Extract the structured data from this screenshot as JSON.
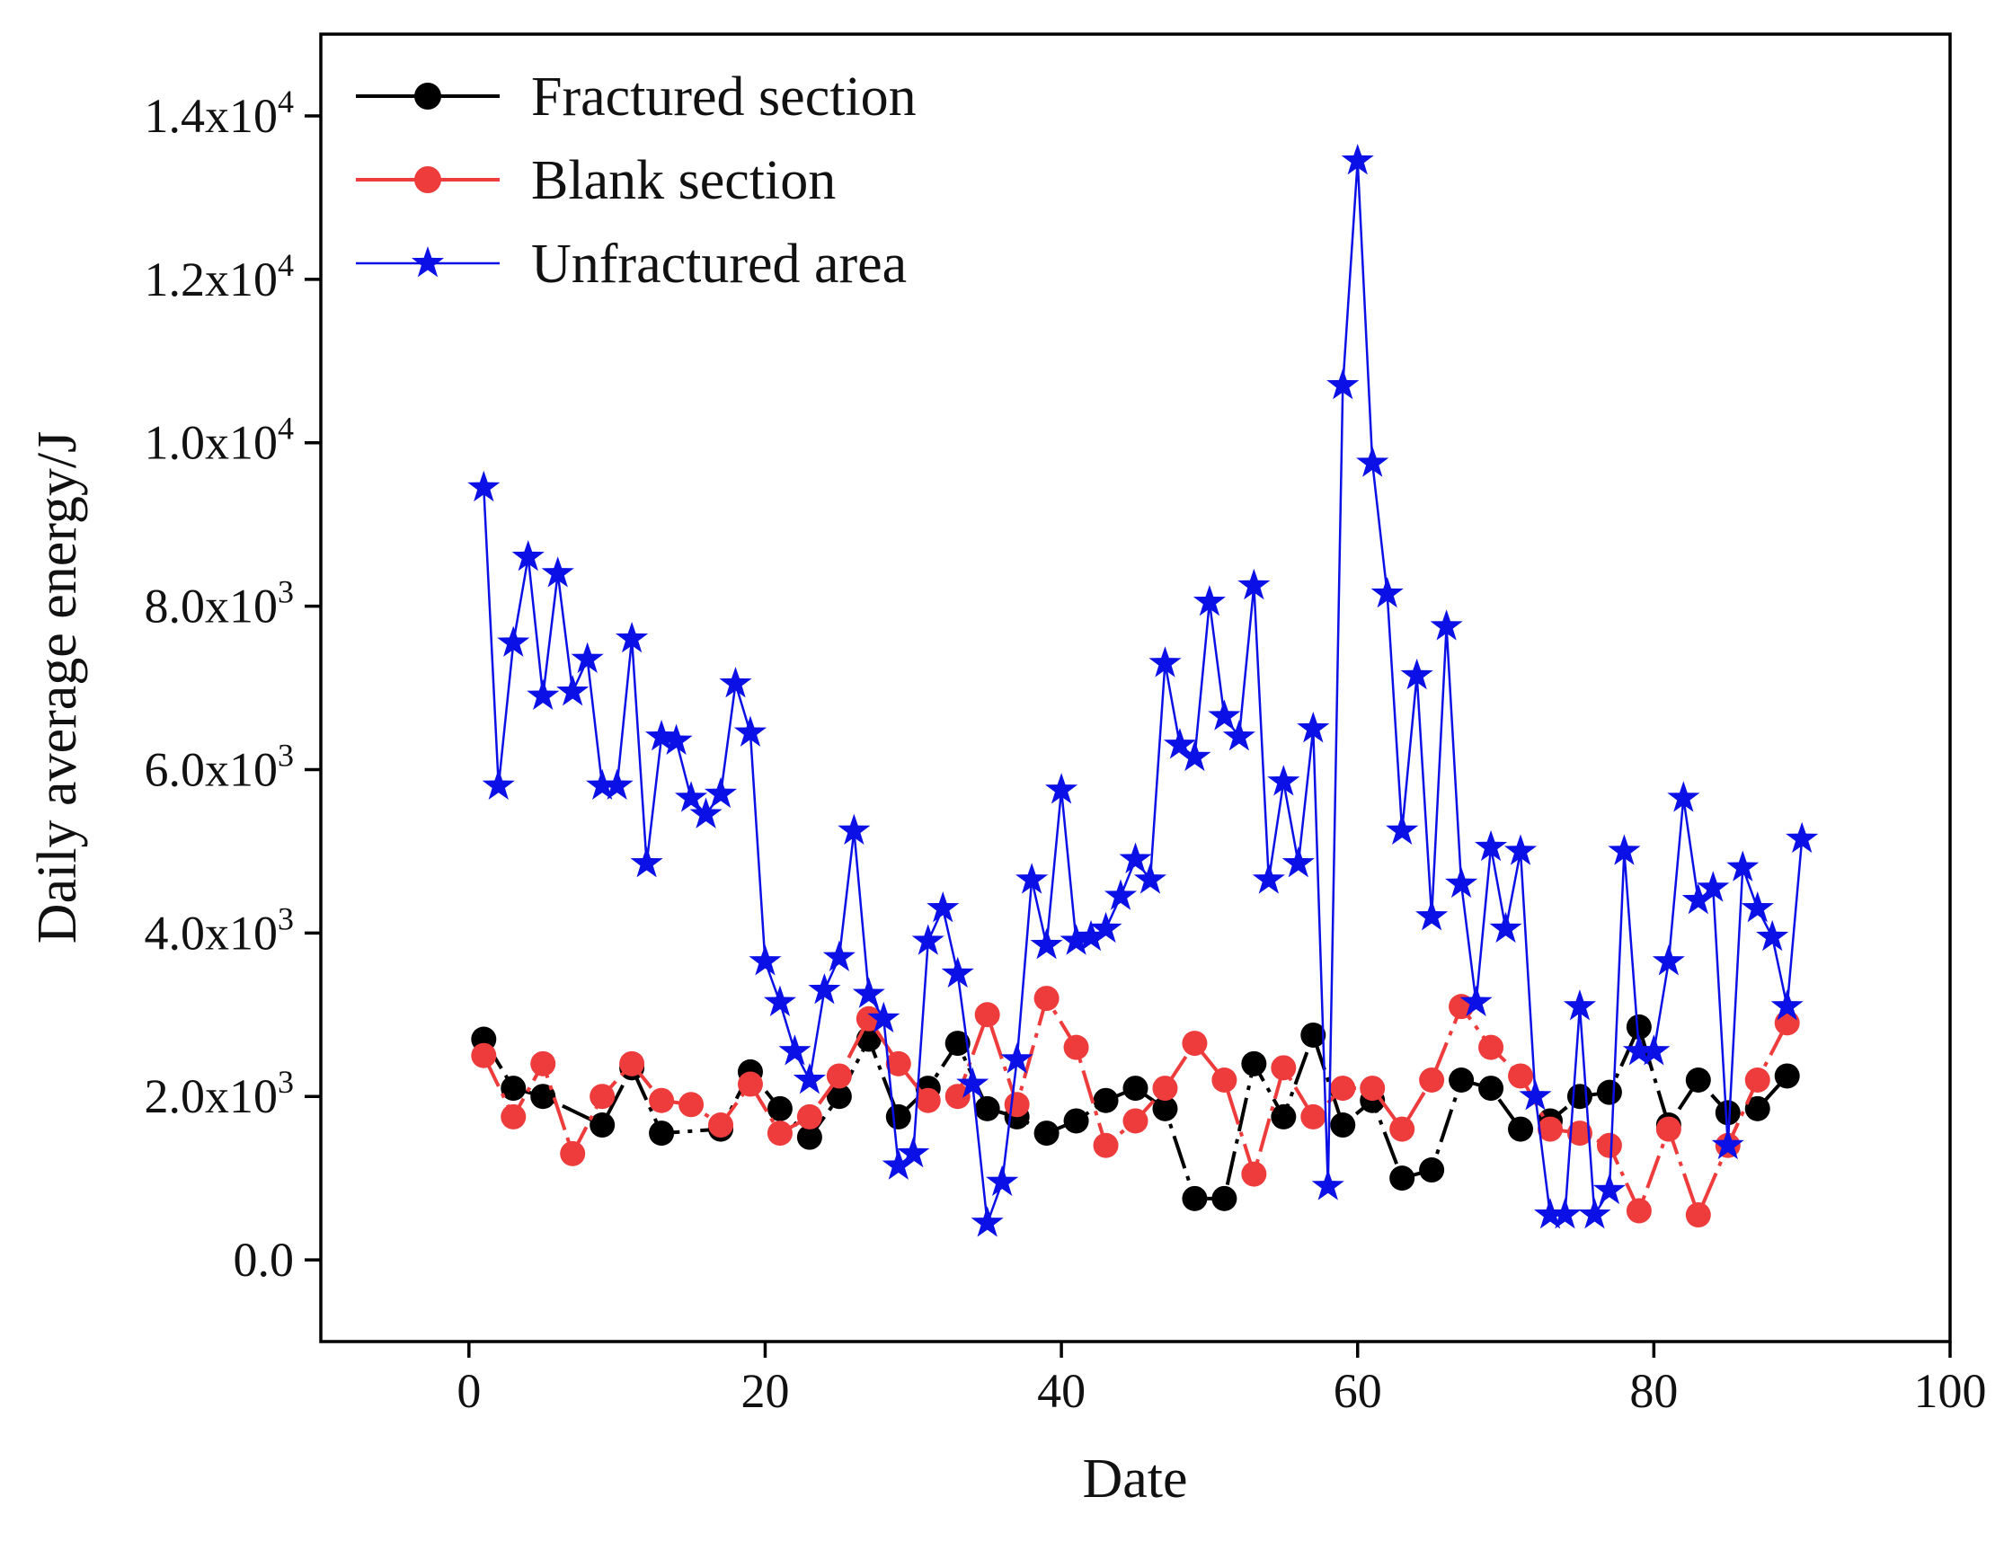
{
  "chart_data": {
    "type": "line",
    "title": "",
    "xlabel": "Date",
    "ylabel": "Daily average energy/J",
    "xlim": [
      -10,
      100
    ],
    "ylim": [
      -1000,
      15000
    ],
    "x_ticks": [
      0,
      20,
      40,
      60,
      80,
      100
    ],
    "x_tick_labels": [
      "0",
      "20",
      "40",
      "60",
      "80",
      "100"
    ],
    "y_ticks": [
      0,
      2000,
      4000,
      6000,
      8000,
      10000,
      12000,
      14000
    ],
    "y_tick_labels": [
      {
        "mantissa": "0.0",
        "exponent": ""
      },
      {
        "mantissa": "2.0x10",
        "exponent": "3"
      },
      {
        "mantissa": "4.0x10",
        "exponent": "3"
      },
      {
        "mantissa": "6.0x10",
        "exponent": "3"
      },
      {
        "mantissa": "8.0x10",
        "exponent": "3"
      },
      {
        "mantissa": "1.0x10",
        "exponent": "4"
      },
      {
        "mantissa": "1.2x10",
        "exponent": "4"
      },
      {
        "mantissa": "1.4x10",
        "exponent": "4"
      }
    ],
    "grid": false,
    "legend_position": "top-left",
    "series": [
      {
        "name": "Fractured section",
        "color": "#000000",
        "marker": "circle",
        "line_style": "dashdot",
        "points": [
          [
            1,
            2700
          ],
          [
            3,
            2100
          ],
          [
            5,
            2000
          ],
          [
            9,
            1650
          ],
          [
            11,
            2350
          ],
          [
            13,
            1550
          ],
          [
            17,
            1600
          ],
          [
            19,
            2300
          ],
          [
            21,
            1850
          ],
          [
            23,
            1500
          ],
          [
            25,
            2000
          ],
          [
            27,
            2700
          ],
          [
            29,
            1750
          ],
          [
            31,
            2100
          ],
          [
            33,
            2650
          ],
          [
            35,
            1850
          ],
          [
            37,
            1750
          ],
          [
            39,
            1550
          ],
          [
            41,
            1700
          ],
          [
            43,
            1950
          ],
          [
            45,
            2100
          ],
          [
            47,
            1850
          ],
          [
            49,
            750
          ],
          [
            51,
            750
          ],
          [
            53,
            2400
          ],
          [
            55,
            1750
          ],
          [
            57,
            2750
          ],
          [
            59,
            1650
          ],
          [
            61,
            1950
          ],
          [
            63,
            1000
          ],
          [
            65,
            1100
          ],
          [
            67,
            2200
          ],
          [
            69,
            2100
          ],
          [
            71,
            1600
          ],
          [
            73,
            1700
          ],
          [
            75,
            2000
          ],
          [
            77,
            2050
          ],
          [
            79,
            2850
          ],
          [
            81,
            1650
          ],
          [
            83,
            2200
          ],
          [
            85,
            1800
          ],
          [
            87,
            1850
          ],
          [
            89,
            2250
          ]
        ]
      },
      {
        "name": "Blank section",
        "color": "#ee3b3b",
        "marker": "circle",
        "line_style": "dashdot",
        "points": [
          [
            1,
            2500
          ],
          [
            3,
            1750
          ],
          [
            5,
            2400
          ],
          [
            7,
            1300
          ],
          [
            9,
            2000
          ],
          [
            11,
            2400
          ],
          [
            13,
            1950
          ],
          [
            15,
            1900
          ],
          [
            17,
            1650
          ],
          [
            19,
            2150
          ],
          [
            21,
            1550
          ],
          [
            23,
            1750
          ],
          [
            25,
            2250
          ],
          [
            27,
            2950
          ],
          [
            29,
            2400
          ],
          [
            31,
            1950
          ],
          [
            33,
            2000
          ],
          [
            35,
            3000
          ],
          [
            37,
            1900
          ],
          [
            39,
            3200
          ],
          [
            41,
            2600
          ],
          [
            43,
            1400
          ],
          [
            45,
            1700
          ],
          [
            47,
            2100
          ],
          [
            49,
            2650
          ],
          [
            51,
            2200
          ],
          [
            53,
            1050
          ],
          [
            55,
            2350
          ],
          [
            57,
            1750
          ],
          [
            59,
            2100
          ],
          [
            61,
            2100
          ],
          [
            63,
            1600
          ],
          [
            65,
            2200
          ],
          [
            67,
            3100
          ],
          [
            69,
            2600
          ],
          [
            71,
            2250
          ],
          [
            73,
            1600
          ],
          [
            75,
            1550
          ],
          [
            77,
            1400
          ],
          [
            79,
            600
          ],
          [
            81,
            1600
          ],
          [
            83,
            550
          ],
          [
            85,
            1400
          ],
          [
            87,
            2200
          ],
          [
            89,
            2900
          ]
        ]
      },
      {
        "name": "Unfractured area",
        "color": "#0a10e6",
        "marker": "star",
        "line_style": "solid",
        "points": [
          [
            1,
            9450
          ],
          [
            2,
            5800
          ],
          [
            3,
            7550
          ],
          [
            4,
            8600
          ],
          [
            5,
            6900
          ],
          [
            6,
            8400
          ],
          [
            7,
            6950
          ],
          [
            8,
            7350
          ],
          [
            9,
            5800
          ],
          [
            10,
            5800
          ],
          [
            11,
            7600
          ],
          [
            12,
            4850
          ],
          [
            13,
            6400
          ],
          [
            14,
            6350
          ],
          [
            15,
            5650
          ],
          [
            16,
            5450
          ],
          [
            17,
            5700
          ],
          [
            18,
            7050
          ],
          [
            19,
            6450
          ],
          [
            20,
            3650
          ],
          [
            21,
            3150
          ],
          [
            22,
            2550
          ],
          [
            23,
            2200
          ],
          [
            24,
            3300
          ],
          [
            25,
            3700
          ],
          [
            26,
            5250
          ],
          [
            27,
            3250
          ],
          [
            28,
            2950
          ],
          [
            29,
            1150
          ],
          [
            30,
            1300
          ],
          [
            31,
            3900
          ],
          [
            32,
            4300
          ],
          [
            33,
            3500
          ],
          [
            34,
            2150
          ],
          [
            35,
            450
          ],
          [
            36,
            950
          ],
          [
            37,
            2450
          ],
          [
            38,
            4650
          ],
          [
            39,
            3850
          ],
          [
            40,
            5750
          ],
          [
            41,
            3900
          ],
          [
            42,
            3950
          ],
          [
            43,
            4050
          ],
          [
            44,
            4450
          ],
          [
            45,
            4900
          ],
          [
            46,
            4650
          ],
          [
            47,
            7300
          ],
          [
            48,
            6300
          ],
          [
            49,
            6150
          ],
          [
            50,
            8050
          ],
          [
            51,
            6650
          ],
          [
            52,
            6400
          ],
          [
            53,
            8250
          ],
          [
            54,
            4650
          ],
          [
            55,
            5850
          ],
          [
            56,
            4850
          ],
          [
            57,
            6500
          ],
          [
            58,
            900
          ],
          [
            59,
            10700
          ],
          [
            60,
            13450
          ],
          [
            61,
            9750
          ],
          [
            62,
            8150
          ],
          [
            63,
            5250
          ],
          [
            64,
            7150
          ],
          [
            65,
            4200
          ],
          [
            66,
            7750
          ],
          [
            67,
            4600
          ],
          [
            68,
            3150
          ],
          [
            69,
            5050
          ],
          [
            70,
            4050
          ],
          [
            71,
            5000
          ],
          [
            72,
            2000
          ],
          [
            73,
            550
          ],
          [
            74,
            550
          ],
          [
            75,
            3100
          ],
          [
            76,
            550
          ],
          [
            77,
            850
          ],
          [
            78,
            5000
          ],
          [
            79,
            2550
          ],
          [
            80,
            2550
          ],
          [
            81,
            3650
          ],
          [
            82,
            5650
          ],
          [
            83,
            4400
          ],
          [
            84,
            4550
          ],
          [
            85,
            1400
          ],
          [
            86,
            4800
          ],
          [
            87,
            4300
          ],
          [
            88,
            3950
          ],
          [
            89,
            3100
          ],
          [
            90,
            5150
          ]
        ]
      }
    ]
  }
}
